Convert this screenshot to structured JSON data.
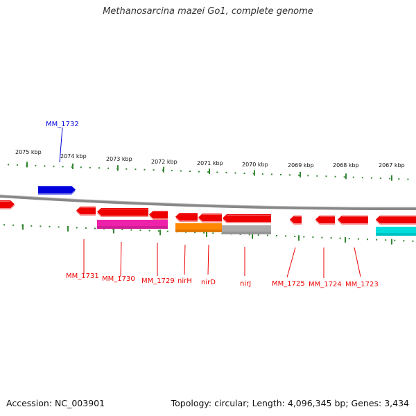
{
  "title": "Methanosarcina mazei Go1, complete genome",
  "footer": {
    "accession": "Accession: NC_003901",
    "info": "Topology: circular; Length: 4,096,345 bp; Genes: 3,434"
  },
  "colors": {
    "plus_strand_gene": "#0000dd",
    "minus_strand_gene": "#ee0000",
    "backbone": "#888888",
    "ticks": "#338833"
  },
  "ruler": {
    "ticks": [
      "2075 kbp",
      "2074 kbp",
      "2073 kbp",
      "2072 kbp",
      "2071 kbp",
      "2070 kbp",
      "2069 kbp",
      "2068 kbp",
      "2067 kbp"
    ]
  },
  "genes": [
    {
      "label": "MM_1732",
      "strand": "+",
      "color": "#0000dd"
    },
    {
      "label": "MM_1731",
      "strand": "-",
      "color": "#ee0000"
    },
    {
      "label": "MM_1730",
      "strand": "-",
      "color": "#ee0000"
    },
    {
      "label": "MM_1729",
      "strand": "-",
      "color": "#ee0000"
    },
    {
      "label": "nirH",
      "strand": "-",
      "color": "#ee0000"
    },
    {
      "label": "nirD",
      "strand": "-",
      "color": "#ee0000"
    },
    {
      "label": "nirJ",
      "strand": "-",
      "color": "#ee0000"
    },
    {
      "label": "MM_1725",
      "strand": "-",
      "color": "#ee0000"
    },
    {
      "label": "MM_1724",
      "strand": "-",
      "color": "#ee0000"
    },
    {
      "label": "MM_1723",
      "strand": "-",
      "color": "#ee0000"
    }
  ],
  "features": [
    {
      "color": "#ee22aa"
    },
    {
      "color": "#ff8800"
    },
    {
      "color": "#aaaaaa"
    },
    {
      "color": "#00dddd"
    }
  ]
}
